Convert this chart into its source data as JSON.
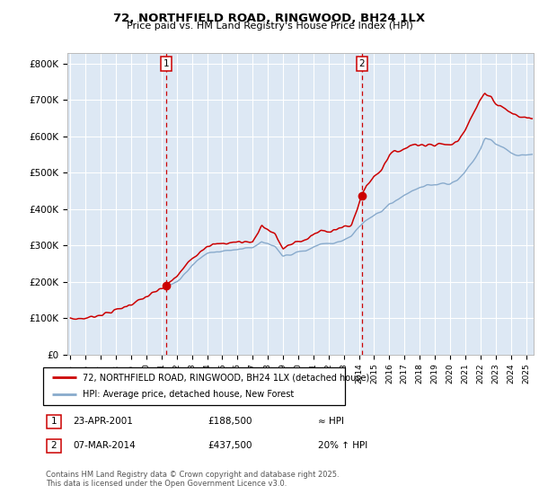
{
  "title": "72, NORTHFIELD ROAD, RINGWOOD, BH24 1LX",
  "subtitle": "Price paid vs. HM Land Registry's House Price Index (HPI)",
  "ylabel_ticks": [
    "£0",
    "£100K",
    "£200K",
    "£300K",
    "£400K",
    "£500K",
    "£600K",
    "£700K",
    "£800K"
  ],
  "ytick_values": [
    0,
    100000,
    200000,
    300000,
    400000,
    500000,
    600000,
    700000,
    800000
  ],
  "ylim": [
    0,
    830000
  ],
  "xlim_start": 1994.8,
  "xlim_end": 2025.5,
  "sale1_x": 2001.31,
  "sale1_y": 188500,
  "sale2_x": 2014.18,
  "sale2_y": 437500,
  "vline1_x": 2001.31,
  "vline2_x": 2014.18,
  "bg_color": "#dde8f4",
  "line_color_red": "#cc0000",
  "line_color_blue": "#88aacc",
  "legend_label_red": "72, NORTHFIELD ROAD, RINGWOOD, BH24 1LX (detached house)",
  "legend_label_blue": "HPI: Average price, detached house, New Forest",
  "footnote": "Contains HM Land Registry data © Crown copyright and database right 2025.\nThis data is licensed under the Open Government Licence v3.0.",
  "table_row1": [
    "1",
    "23-APR-2001",
    "£188,500",
    "≈ HPI"
  ],
  "table_row2": [
    "2",
    "07-MAR-2014",
    "£437,500",
    "20% ↑ HPI"
  ]
}
